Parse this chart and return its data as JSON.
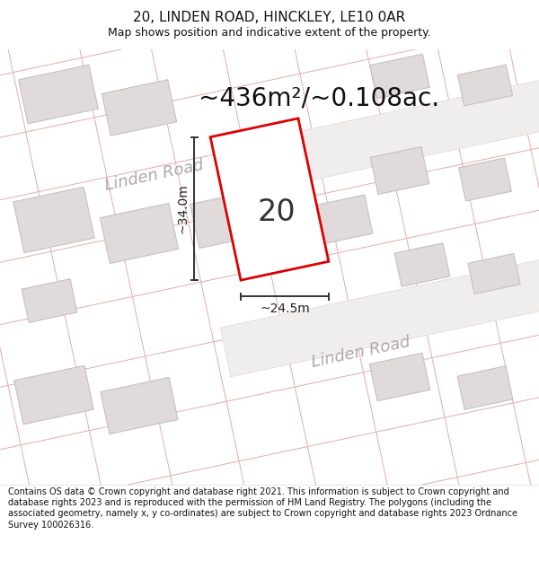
{
  "title": "20, LINDEN ROAD, HINCKLEY, LE10 0AR",
  "subtitle": "Map shows position and indicative extent of the property.",
  "area_text": "~436m²/~0.108ac.",
  "width_label": "~24.5m",
  "height_label": "~34.0m",
  "plot_number": "20",
  "footer": "Contains OS data © Crown copyright and database right 2021. This information is subject to Crown copyright and database rights 2023 and is reproduced with the permission of HM Land Registry. The polygons (including the associated geometry, namely x, y co-ordinates) are subject to Crown copyright and database rights 2023 Ordnance Survey 100026316.",
  "bg_color": "#ffffff",
  "map_bg": "#f8f6f6",
  "road_fill": "#f0eded",
  "building_fill": "#e0dada",
  "building_edge": "#c8c0c0",
  "property_line_color": "#e8aaaa",
  "plot_outline_color": "#dd0000",
  "dim_line_color": "#333333",
  "road_label_color": "#b0a8a8",
  "area_text_color": "#111111",
  "title_color": "#111111",
  "footer_color": "#111111",
  "title_fontsize": 11,
  "subtitle_fontsize": 9,
  "area_fontsize": 20,
  "plot_label_fontsize": 24,
  "road_label_fontsize": 13,
  "dim_fontsize": 10,
  "footer_fontsize": 7
}
